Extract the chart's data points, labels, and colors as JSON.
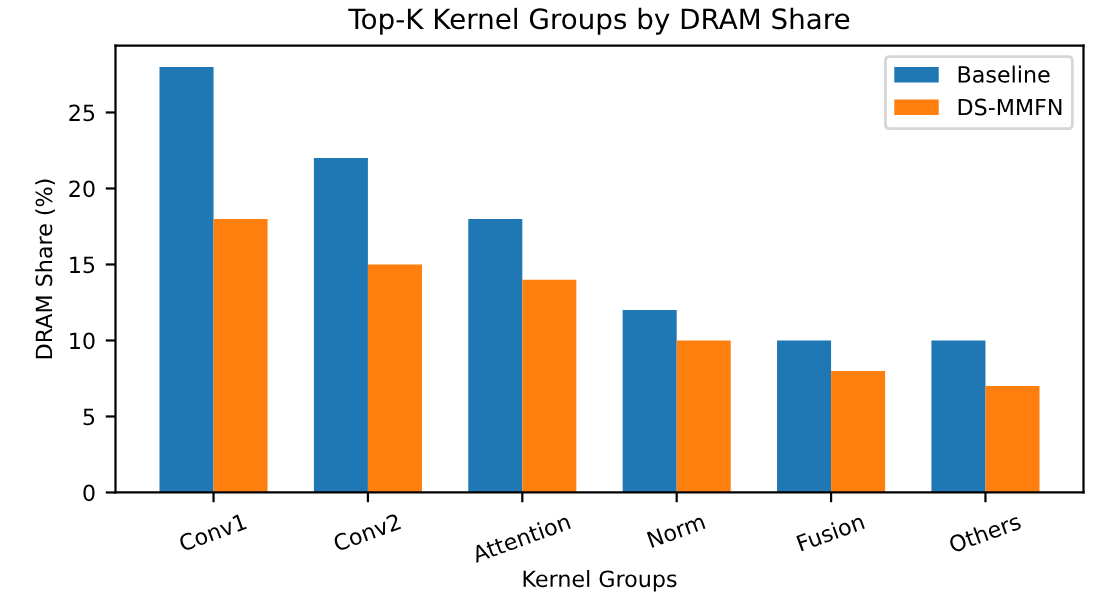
{
  "chart_data": {
    "type": "bar",
    "title": "Top-K Kernel Groups by DRAM Share",
    "xlabel": "Kernel Groups",
    "ylabel": "DRAM Share (%)",
    "categories": [
      "Conv1",
      "Conv2",
      "Attention",
      "Norm",
      "Fusion",
      "Others"
    ],
    "series": [
      {
        "name": "Baseline",
        "color": "#1f77b4",
        "values": [
          28,
          22,
          18,
          12,
          10,
          10
        ]
      },
      {
        "name": "DS-MMFN",
        "color": "#ff7f0e",
        "values": [
          18,
          15,
          14,
          10,
          8,
          7
        ]
      }
    ],
    "ylim": [
      0,
      29.4
    ],
    "yticks": [
      0,
      5,
      10,
      15,
      20,
      25
    ],
    "grid": false,
    "legend": "top right"
  }
}
